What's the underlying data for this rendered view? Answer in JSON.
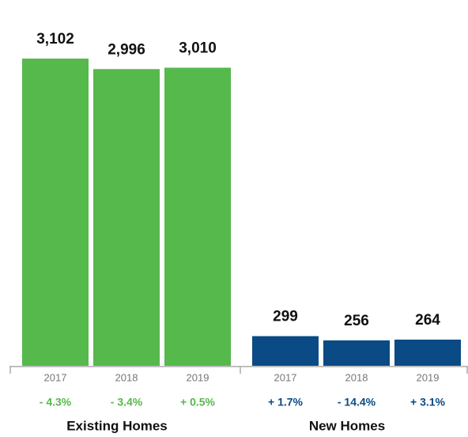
{
  "chart_data": [
    {
      "type": "bar",
      "title": "Existing Homes",
      "categories": [
        "2017",
        "2018",
        "2019"
      ],
      "values": [
        3102,
        2996,
        3010
      ],
      "value_labels": [
        "3,102",
        "2,996",
        "3,010"
      ],
      "annotations": [
        "- 4.3%",
        "- 3.4%",
        "+ 0.5%"
      ],
      "color": "#55b94b"
    },
    {
      "type": "bar",
      "title": "New Homes",
      "categories": [
        "2017",
        "2018",
        "2019"
      ],
      "values": [
        299,
        256,
        264
      ],
      "annotations": [
        "+ 1.7%",
        "- 14.4%",
        "+ 3.1%"
      ],
      "color": "#0a4a85"
    }
  ]
}
